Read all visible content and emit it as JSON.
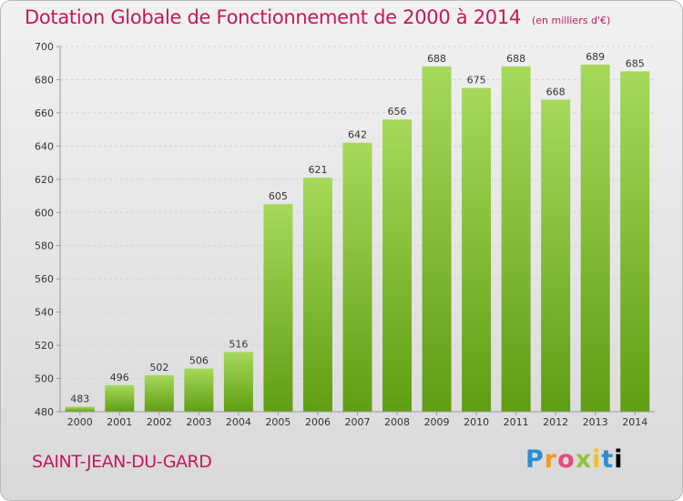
{
  "header": {
    "title": "Dotation Globale de Fonctionnement de 2000 à 2014",
    "unit": "(en milliers d'€)"
  },
  "footer": {
    "commune": "SAINT-JEAN-DU-GARD",
    "brand": "Proxiti"
  },
  "colors": {
    "title": "#c8175b",
    "bar_top": "#a6d95a",
    "bar_bottom": "#5f9e12"
  },
  "chart_data": {
    "type": "bar",
    "title": "Dotation Globale de Fonctionnement de 2000 à 2014",
    "subtitle": "(en milliers d'€)",
    "xlabel": "",
    "ylabel": "",
    "categories": [
      "2000",
      "2001",
      "2002",
      "2003",
      "2004",
      "2005",
      "2006",
      "2007",
      "2008",
      "2009",
      "2010",
      "2011",
      "2012",
      "2013",
      "2014"
    ],
    "values": [
      483,
      496,
      502,
      506,
      516,
      605,
      621,
      642,
      656,
      688,
      675,
      688,
      668,
      689,
      685
    ],
    "ylim": [
      480,
      700
    ],
    "yticks": [
      480,
      500,
      520,
      540,
      560,
      580,
      600,
      620,
      640,
      660,
      680,
      700
    ],
    "grid": true
  }
}
